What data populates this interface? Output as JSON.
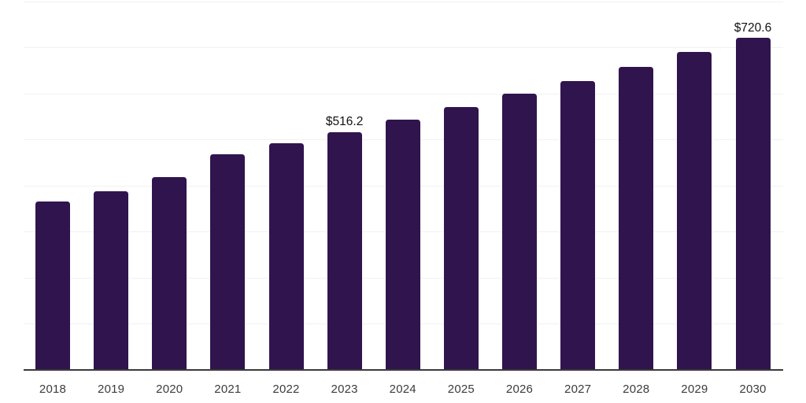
{
  "chart_data": {
    "type": "bar",
    "title": "",
    "xlabel": "",
    "ylabel": "",
    "categories": [
      "2018",
      "2019",
      "2020",
      "2021",
      "2022",
      "2023",
      "2024",
      "2025",
      "2026",
      "2027",
      "2028",
      "2029",
      "2030"
    ],
    "values": [
      365.9,
      387.6,
      418.4,
      468.6,
      492.5,
      516.2,
      542.8,
      571.2,
      599.3,
      626.7,
      657.5,
      690.5,
      720.6
    ],
    "point_labels": [
      "",
      "",
      "",
      "",
      "",
      "$516.2",
      "",
      "",
      "",
      "",
      "",
      "",
      "$720.6"
    ],
    "ylim": [
      0,
      800
    ],
    "grid_interval": 100,
    "grid": true,
    "legend": false,
    "y_axis_labels_visible": false,
    "colors": {
      "bar": "#30144E",
      "gridline": "#f1f1f1",
      "axis_line": "#3a3a3a",
      "tick_label": "#3c3c3c",
      "value_label": "#111111",
      "background": "#ffffff"
    }
  }
}
